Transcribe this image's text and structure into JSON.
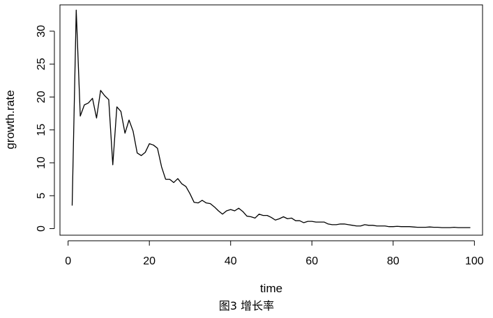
{
  "chart_data": {
    "type": "line",
    "xlabel": "time",
    "ylabel": "growth.rate",
    "xlim": [
      -2,
      102
    ],
    "ylim": [
      -1,
      34
    ],
    "xticks": [
      0,
      20,
      40,
      60,
      80,
      100
    ],
    "yticks": [
      0,
      5,
      10,
      15,
      20,
      25,
      30
    ],
    "grid": false,
    "line_color": "#000000",
    "series": [
      {
        "x": [
          1,
          2,
          3,
          4,
          5,
          6,
          7,
          8,
          9,
          10,
          11,
          12,
          13,
          14,
          15,
          16,
          17,
          18,
          19,
          20,
          21,
          22,
          23,
          24,
          25,
          26,
          27,
          28,
          29,
          30,
          31,
          32,
          33,
          34,
          35,
          36,
          37,
          38,
          39,
          40,
          41,
          42,
          43,
          44,
          45,
          46,
          47,
          48,
          49,
          50,
          51,
          52,
          53,
          54,
          55,
          56,
          57,
          58,
          59,
          60,
          61,
          62,
          63,
          64,
          65,
          66,
          67,
          68,
          69,
          70,
          71,
          72,
          73,
          74,
          75,
          76,
          77,
          78,
          79,
          80,
          81,
          82,
          83,
          84,
          85,
          86,
          87,
          88,
          89,
          90,
          91,
          92,
          93,
          94,
          95,
          96,
          97,
          98,
          99
        ],
        "values": [
          3.5,
          33.2,
          17.1,
          18.8,
          19.1,
          19.8,
          16.8,
          21.0,
          20.2,
          19.6,
          9.7,
          18.5,
          17.8,
          14.5,
          16.5,
          14.8,
          11.5,
          11.1,
          11.6,
          12.9,
          12.7,
          12.2,
          9.4,
          7.5,
          7.5,
          7.0,
          7.6,
          6.8,
          6.4,
          5.3,
          4.0,
          3.9,
          4.3,
          3.9,
          3.8,
          3.3,
          2.7,
          2.2,
          2.7,
          2.9,
          2.7,
          3.1,
          2.6,
          1.9,
          1.8,
          1.6,
          2.2,
          2.0,
          2.0,
          1.7,
          1.3,
          1.5,
          1.8,
          1.5,
          1.6,
          1.2,
          1.2,
          0.9,
          1.1,
          1.1,
          1.0,
          1.0,
          1.0,
          0.7,
          0.6,
          0.6,
          0.7,
          0.7,
          0.6,
          0.5,
          0.4,
          0.4,
          0.6,
          0.5,
          0.5,
          0.4,
          0.4,
          0.4,
          0.3,
          0.3,
          0.35,
          0.3,
          0.3,
          0.3,
          0.25,
          0.2,
          0.2,
          0.2,
          0.25,
          0.2,
          0.2,
          0.15,
          0.15,
          0.15,
          0.2,
          0.15,
          0.15,
          0.15,
          0.15
        ]
      }
    ]
  },
  "caption": "图3 增长率"
}
